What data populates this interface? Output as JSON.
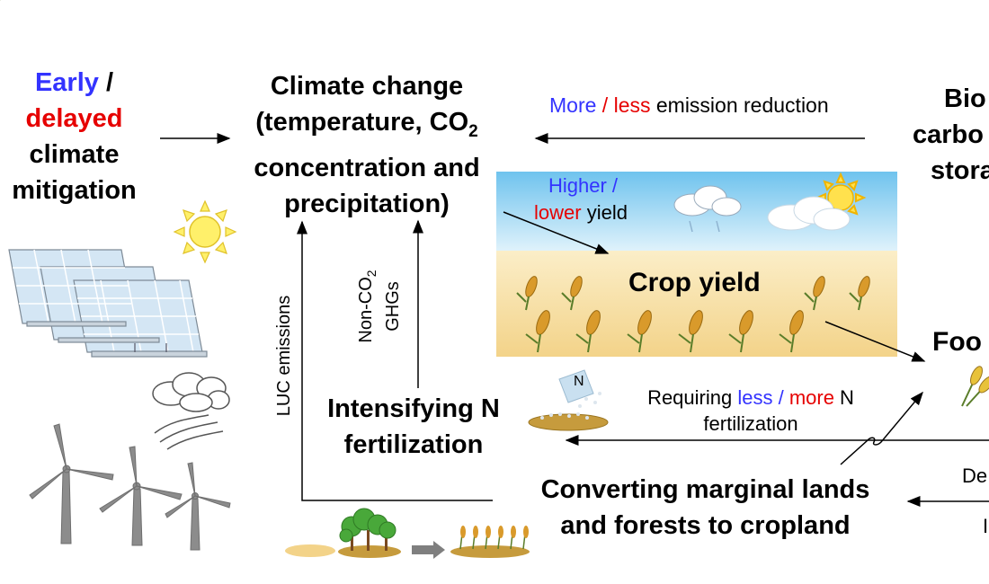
{
  "mitigation": {
    "early": "Early",
    "slash": "/",
    "delayed": "delayed",
    "line3": "climate",
    "line4": "mitigation"
  },
  "climate_change": {
    "line1": "Climate change",
    "line2_prefix": "(temperature, CO",
    "line2_sub": "2",
    "line3": "concentration and",
    "line4": "precipitation)"
  },
  "emission_reduction": {
    "more": "More",
    "slash": " / ",
    "less": "less",
    "rest": " emission reduction"
  },
  "bio_storage": {
    "line1": "Bio",
    "line2": "carbo",
    "line3": "stora"
  },
  "yield_label": {
    "higher": "Higher /",
    "lower": "lower",
    "yield": " yield"
  },
  "crop_yield": {
    "label": "Crop yield"
  },
  "food": {
    "label": "Foo"
  },
  "non_co2": {
    "line1_prefix": "Non-CO",
    "line1_sub": "2",
    "line2": "GHGs"
  },
  "luc": {
    "label": "LUC emissions"
  },
  "intensifying": {
    "line1": "Intensifying N",
    "line2": "fertilization"
  },
  "requiring": {
    "prefix": "Requiring ",
    "less": "less",
    "slash": " / ",
    "more": "more",
    "suffix": " N",
    "line2": "fertilization"
  },
  "fertilizer_bag": {
    "label": "N"
  },
  "converting": {
    "line1": "Converting marginal lands",
    "line2": "and forests to cropland"
  },
  "right_edge": {
    "de": "De",
    "l": "I"
  },
  "colors": {
    "blue": "#3333ff",
    "red": "#e60000",
    "sky": "#bfe3f7",
    "soil": "#f5dea0"
  }
}
